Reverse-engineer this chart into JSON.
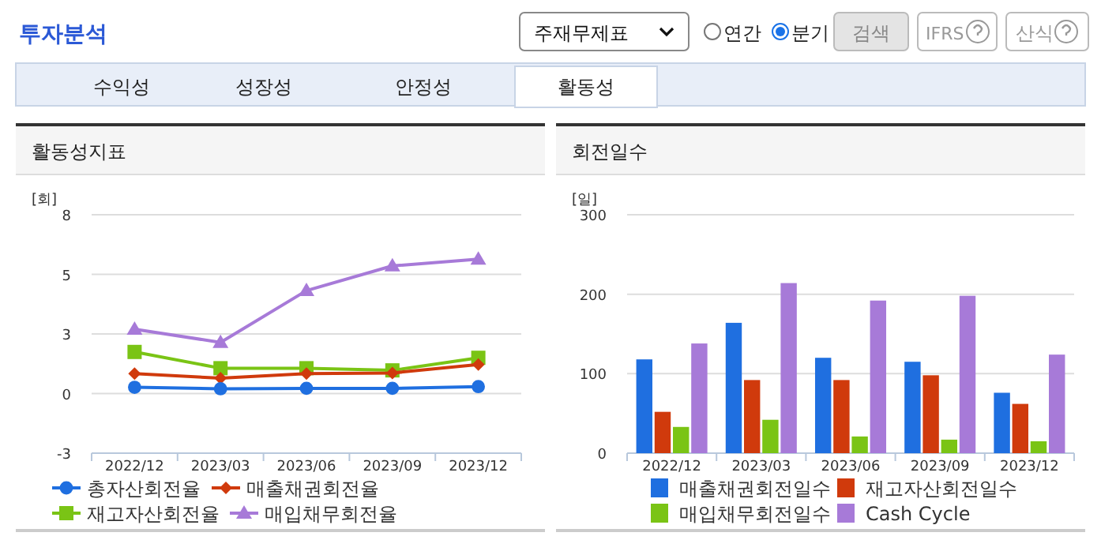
{
  "chart_data": [
    {
      "type": "other",
      "title": "투자분석",
      "annotations": [
        "주재무제표",
        "연간",
        "분기",
        "검색",
        "IFRS",
        "산식",
        "수익성",
        "성장성",
        "안정성",
        "활동성"
      ]
    },
    {
      "type": "line",
      "title": "활동성지표",
      "ylabel": "[회]",
      "categories": [
        "2022/12",
        "2023/03",
        "2023/06",
        "2023/09",
        "2023/12"
      ],
      "ylim": [
        -2.75,
        8.25
      ],
      "yticks": [
        {
          "value": -2.75,
          "label": "-3"
        },
        0,
        {
          "value": 2.75,
          "label": "3"
        },
        {
          "value": 5.5,
          "label": "5"
        },
        {
          "value": 8.25,
          "label": "8"
        }
      ],
      "grid": "y",
      "legend": "bottom",
      "series": [
        {
          "name": "총자산회전율",
          "color": "#1f6fe0",
          "marker": "circle",
          "values": [
            0.29,
            0.22,
            0.24,
            0.24,
            0.32
          ]
        },
        {
          "name": "매출채권회전율",
          "color": "#d03a0c",
          "marker": "diamond",
          "values": [
            0.92,
            0.71,
            0.92,
            0.95,
            1.34
          ]
        },
        {
          "name": "재고자산회전율",
          "color": "#7ac415",
          "marker": "square",
          "values": [
            1.92,
            1.17,
            1.17,
            1.07,
            1.65
          ]
        },
        {
          "name": "매입채무회전율",
          "color": "#a77ad8",
          "marker": "triangle",
          "values": [
            2.97,
            2.36,
            4.75,
            5.89,
            6.2
          ]
        }
      ]
    },
    {
      "type": "bar",
      "title": "회전일수",
      "ylabel": "[일]",
      "categories": [
        "2022/12",
        "2023/03",
        "2023/06",
        "2023/09",
        "2023/12"
      ],
      "ylim": [
        0,
        300
      ],
      "yticks": [
        0,
        100,
        200,
        300
      ],
      "grid": "y",
      "legend": "bottom",
      "series": [
        {
          "name": "매출채권회전일수",
          "color": "#1f6fe0",
          "values": [
            118,
            164,
            120,
            115,
            76
          ]
        },
        {
          "name": "재고자산회전일수",
          "color": "#d03a0c",
          "values": [
            52,
            92,
            92,
            98,
            62
          ]
        },
        {
          "name": "매입채무회전일수",
          "color": "#7ac415",
          "values": [
            33,
            42,
            21,
            17,
            15
          ]
        },
        {
          "name": "Cash Cycle",
          "color": "#a77ad8",
          "values": [
            138,
            214,
            192,
            198,
            124
          ]
        }
      ]
    }
  ]
}
